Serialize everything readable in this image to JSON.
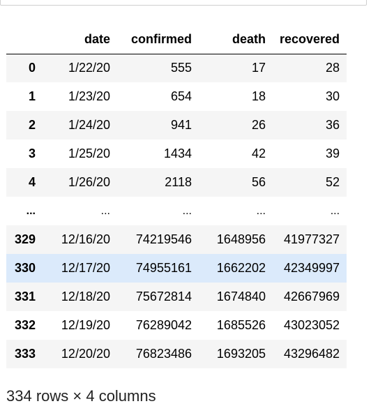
{
  "dataframe": {
    "columns": [
      "date",
      "confirmed",
      "death",
      "recovered"
    ],
    "rows": [
      {
        "index": "0",
        "date": "1/22/20",
        "confirmed": "555",
        "death": "17",
        "recovered": "28"
      },
      {
        "index": "1",
        "date": "1/23/20",
        "confirmed": "654",
        "death": "18",
        "recovered": "30"
      },
      {
        "index": "2",
        "date": "1/24/20",
        "confirmed": "941",
        "death": "26",
        "recovered": "36"
      },
      {
        "index": "3",
        "date": "1/25/20",
        "confirmed": "1434",
        "death": "42",
        "recovered": "39"
      },
      {
        "index": "4",
        "date": "1/26/20",
        "confirmed": "2118",
        "death": "56",
        "recovered": "52"
      },
      {
        "index": "...",
        "date": "...",
        "confirmed": "...",
        "death": "...",
        "recovered": "..."
      },
      {
        "index": "329",
        "date": "12/16/20",
        "confirmed": "74219546",
        "death": "1648956",
        "recovered": "41977327"
      },
      {
        "index": "330",
        "date": "12/17/20",
        "confirmed": "74955161",
        "death": "1662202",
        "recovered": "42349997"
      },
      {
        "index": "331",
        "date": "12/18/20",
        "confirmed": "75672814",
        "death": "1674840",
        "recovered": "42667969"
      },
      {
        "index": "332",
        "date": "12/19/20",
        "confirmed": "76289042",
        "death": "1685526",
        "recovered": "43023052"
      },
      {
        "index": "333",
        "date": "12/20/20",
        "confirmed": "76823486",
        "death": "1693205",
        "recovered": "43296482"
      }
    ],
    "shape_text": "334 rows × 4 columns"
  },
  "colors": {
    "odd_row": "#f5f5f5",
    "hover_row": "#dbeafb"
  }
}
